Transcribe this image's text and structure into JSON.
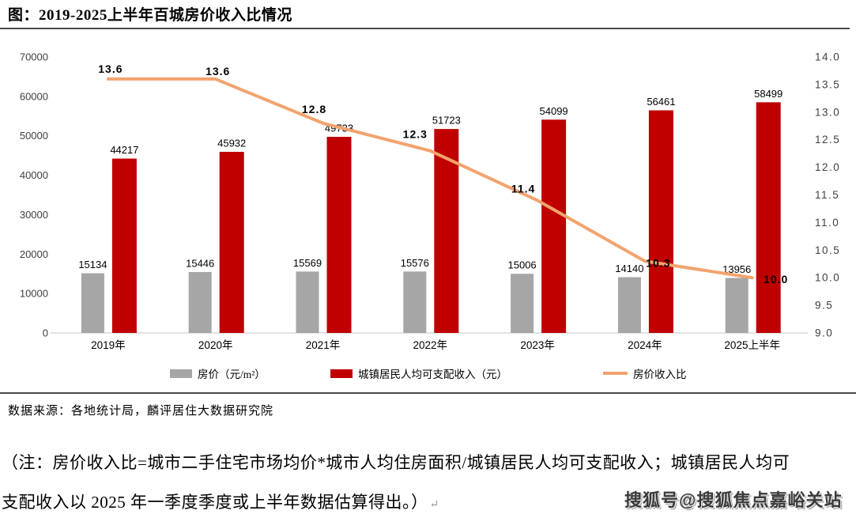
{
  "page": {
    "title": "图：2019-2025上半年百城房价收入比情况",
    "source": "数据来源：各地统计局，麟评居住大数据研究院",
    "note": {
      "line1": "（注：房价收入比=城市二手住宅市场均价*城市人均住房面积/城镇居民人均可支配收入；城镇居民人均可",
      "line2": "支配收入以 2025 年一季度季度或上半年数据估算得出。）",
      "paragraph_mark": "↵"
    },
    "watermark": "搜狐号@搜狐焦点嘉峪关站"
  },
  "chart_data": {
    "type": "bar",
    "subtype": "combo-bar-line-dual-axis",
    "title": "图：2019-2025上半年百城房价收入比情况",
    "categories": [
      "2019年",
      "2020年",
      "2021年",
      "2022年",
      "2023年",
      "2024年",
      "2025上半年"
    ],
    "series": [
      {
        "name": "房价（元/m²）",
        "type": "bar",
        "axis": "left",
        "color": "#A6A6A6",
        "values": [
          15134,
          15446,
          15569,
          15576,
          15006,
          14140,
          13956
        ]
      },
      {
        "name": "城镇居民人均可支配收入（元）",
        "type": "bar",
        "axis": "left",
        "color": "#C00000",
        "values": [
          44217,
          45932,
          49733,
          51723,
          54099,
          56461,
          58499
        ]
      },
      {
        "name": "房价收入比",
        "type": "line",
        "axis": "right",
        "color": "#F2A36E",
        "values": [
          13.6,
          13.6,
          12.8,
          12.3,
          11.4,
          10.3,
          10.0
        ]
      }
    ],
    "left_axis": {
      "min": 0,
      "max": 70000,
      "step": 10000
    },
    "right_axis": {
      "min": 9.0,
      "max": 14.0,
      "step": 0.5
    },
    "legend_position": "bottom",
    "grid": false,
    "axis_line_color": "#D9D9D9"
  }
}
